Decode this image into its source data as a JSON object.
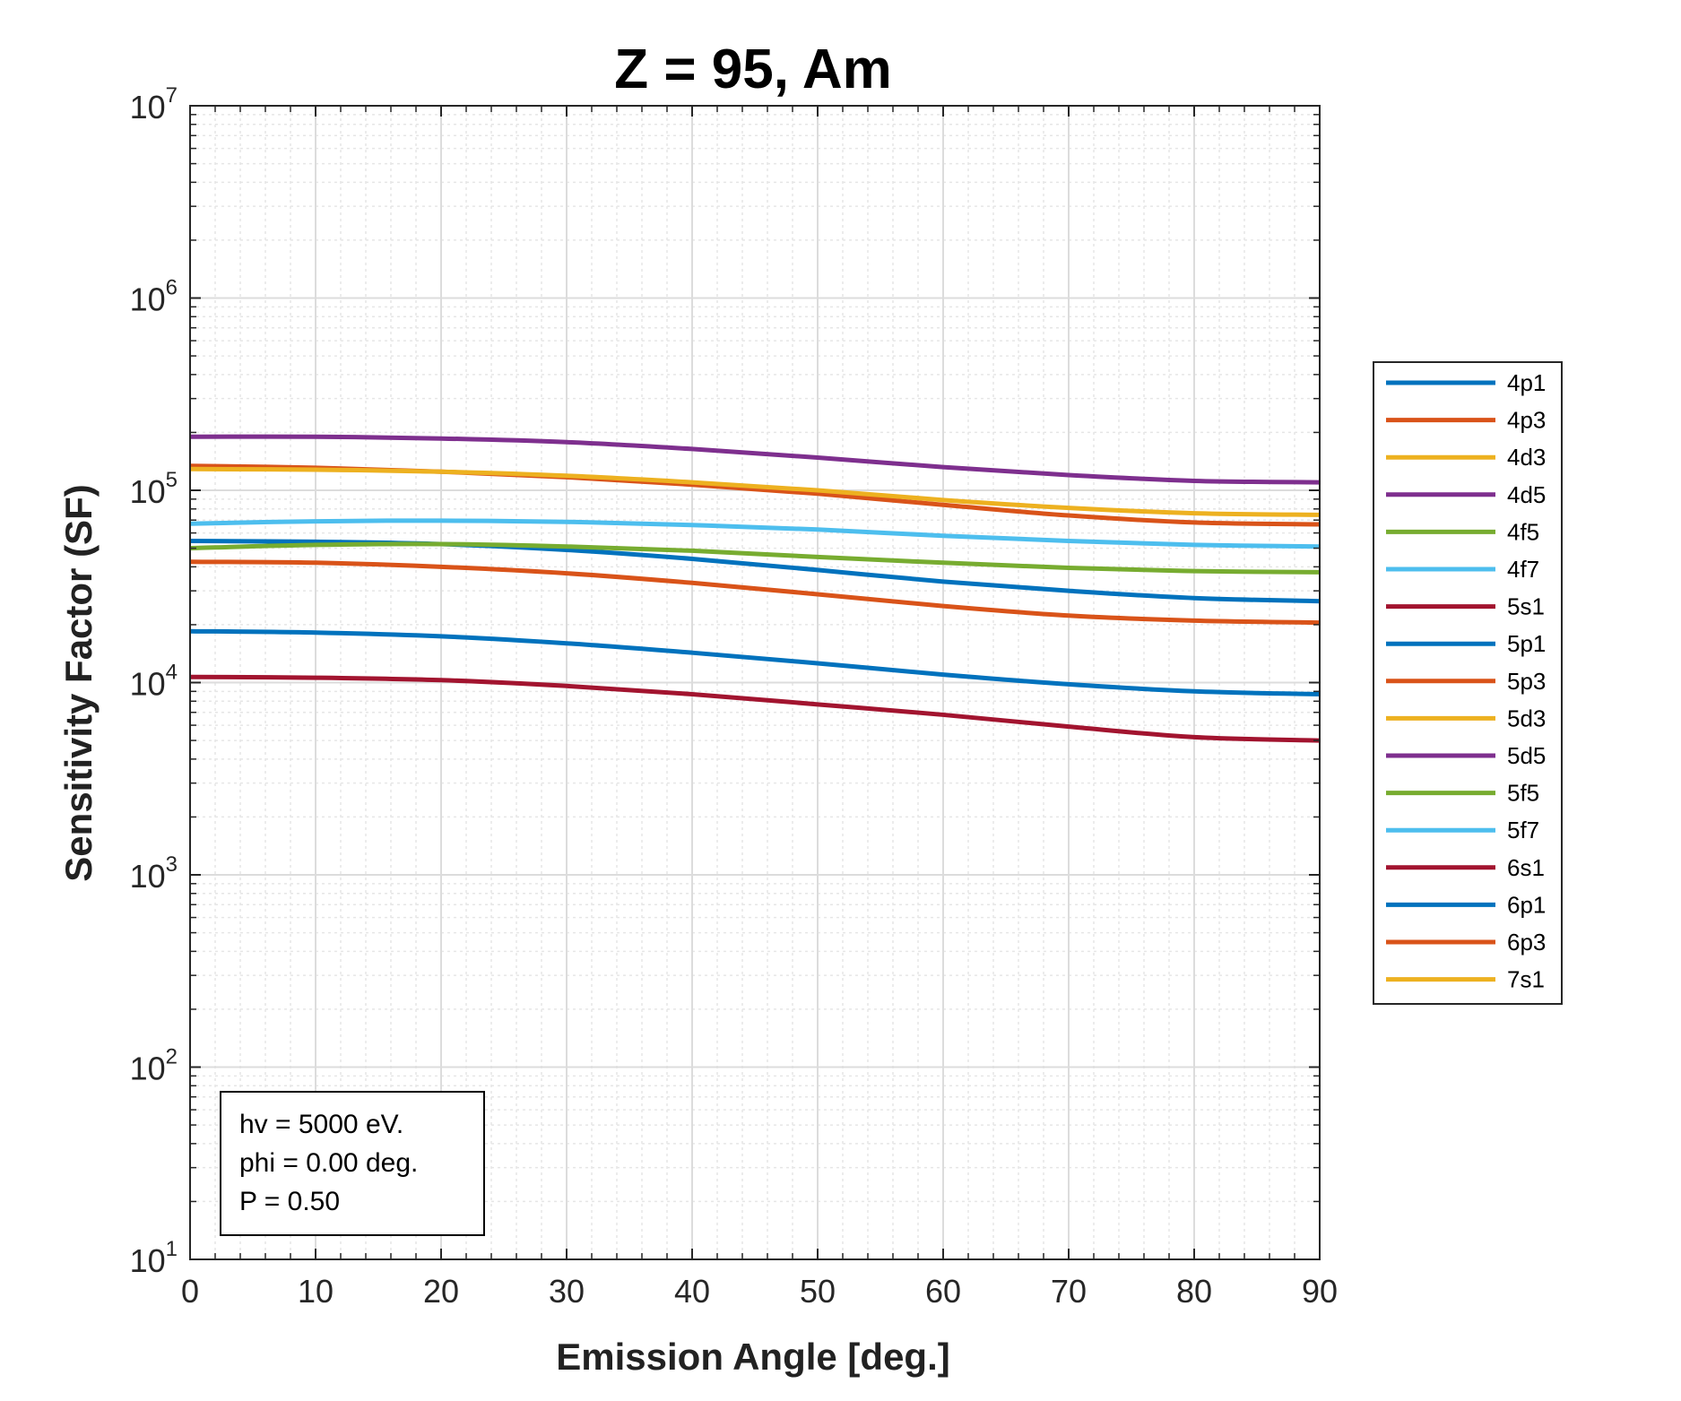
{
  "chart_data": {
    "type": "line",
    "title": "Z = 95, Am",
    "xlabel": "Emission Angle [deg.]",
    "ylabel": "Sensitivity Factor (SF)",
    "xlim": [
      0,
      90
    ],
    "ylim": [
      10,
      10000000
    ],
    "yscale": "log",
    "x_ticks": [
      "0",
      "10",
      "20",
      "30",
      "40",
      "50",
      "60",
      "70",
      "80",
      "90"
    ],
    "y_ticks": [
      {
        "base": "10",
        "exp": "1",
        "value": 10
      },
      {
        "base": "10",
        "exp": "2",
        "value": 100
      },
      {
        "base": "10",
        "exp": "3",
        "value": 1000
      },
      {
        "base": "10",
        "exp": "4",
        "value": 10000
      },
      {
        "base": "10",
        "exp": "5",
        "value": 100000
      },
      {
        "base": "10",
        "exp": "6",
        "value": 1000000
      },
      {
        "base": "10",
        "exp": "7",
        "value": 10000000
      }
    ],
    "grid": true,
    "minor_grid": true,
    "legend_position": "outside-right",
    "x": [
      0,
      10,
      20,
      30,
      40,
      50,
      60,
      70,
      80,
      90
    ],
    "series": [
      {
        "name": "4p1",
        "color": "#0072BD",
        "values": [
          54500,
          54000,
          52500,
          49000,
          44000,
          38500,
          33500,
          30000,
          27500,
          26500
        ]
      },
      {
        "name": "4p3",
        "color": "#D95319",
        "values": [
          134000,
          131000,
          125000,
          117000,
          107000,
          96000,
          84000,
          74000,
          68000,
          66500
        ]
      },
      {
        "name": "4d3",
        "color": "#EDB120",
        "values": [
          129000,
          128000,
          125000,
          119000,
          110000,
          100000,
          89000,
          81000,
          76000,
          74500
        ]
      },
      {
        "name": "4d5",
        "color": "#7E2F8E",
        "values": [
          190000,
          190000,
          186000,
          178000,
          164000,
          148000,
          132000,
          120000,
          112000,
          110000
        ]
      },
      {
        "name": "4f5",
        "color": "#77AC30",
        "values": [
          50000,
          52000,
          52500,
          51000,
          48500,
          45000,
          42000,
          39500,
          38000,
          37500
        ]
      },
      {
        "name": "4f7",
        "color": "#4DBEEE",
        "values": [
          67000,
          69000,
          69500,
          68500,
          66000,
          62500,
          58000,
          54500,
          52000,
          51000
        ]
      },
      {
        "name": "5s1",
        "color": "#A2142F",
        "values": null
      },
      {
        "name": "5p1",
        "color": "#0072BD",
        "values": [
          18500,
          18200,
          17400,
          16000,
          14300,
          12600,
          11000,
          9800,
          9000,
          8700
        ]
      },
      {
        "name": "5p3",
        "color": "#D95319",
        "values": [
          42500,
          42000,
          40000,
          37000,
          33000,
          28800,
          25000,
          22300,
          21000,
          20500
        ]
      },
      {
        "name": "5d3",
        "color": "#EDB120",
        "values": null
      },
      {
        "name": "5d5",
        "color": "#7E2F8E",
        "values": null
      },
      {
        "name": "5f5",
        "color": "#77AC30",
        "values": null
      },
      {
        "name": "5f7",
        "color": "#4DBEEE",
        "values": null
      },
      {
        "name": "6s1",
        "color": "#A2142F",
        "values": [
          10700,
          10600,
          10300,
          9600,
          8700,
          7700,
          6800,
          5900,
          5200,
          5000
        ]
      },
      {
        "name": "6p1",
        "color": "#0072BD",
        "values": null
      },
      {
        "name": "6p3",
        "color": "#D95319",
        "values": null
      },
      {
        "name": "7s1",
        "color": "#EDB120",
        "values": null
      }
    ],
    "annotation": [
      "hv = 5000 eV.",
      "phi = 0.00 deg.",
      "P = 0.50"
    ]
  }
}
